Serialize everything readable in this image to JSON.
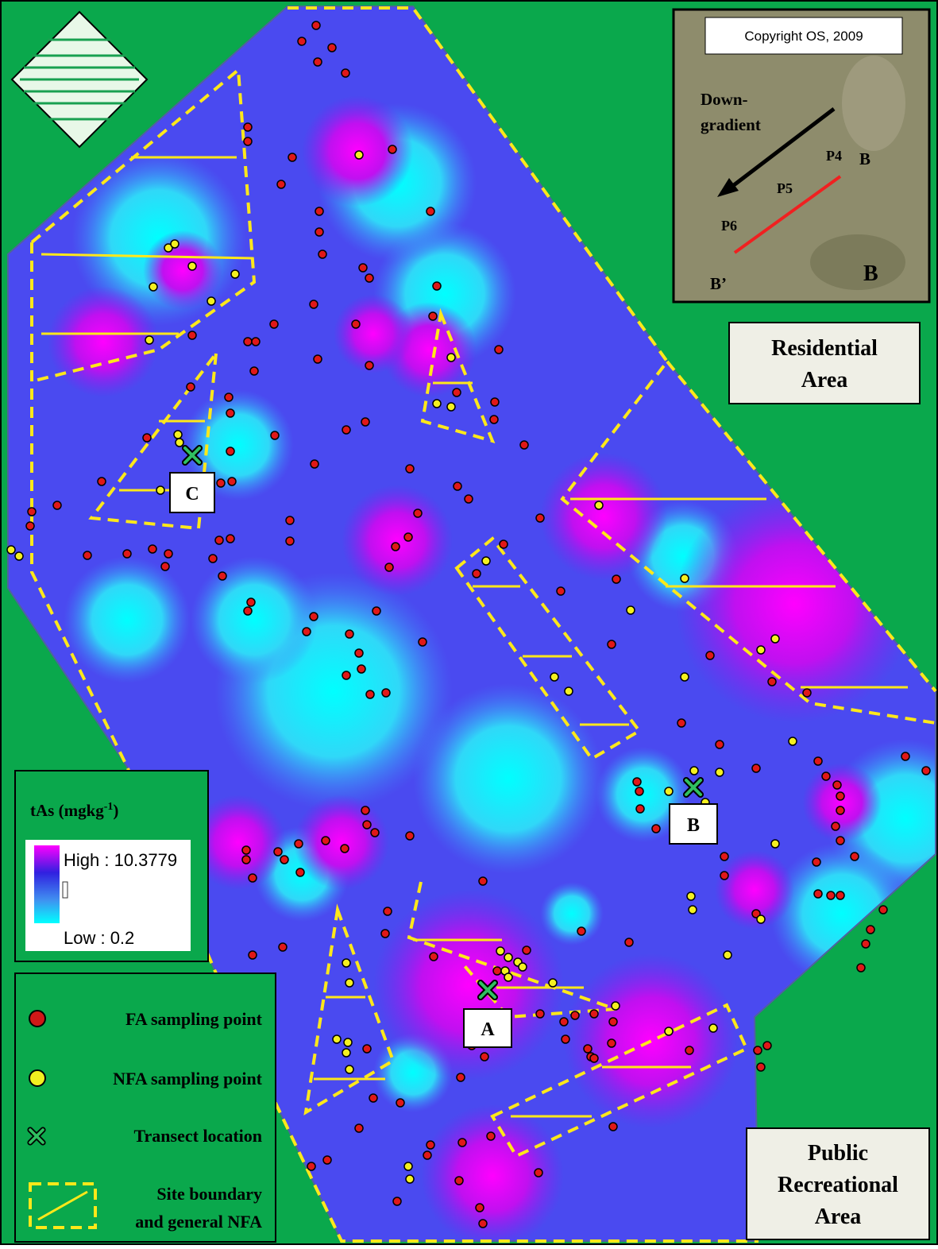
{
  "inset": {
    "copyright": "Copyright OS, 2009",
    "arrow_label": [
      "Down-",
      "gradient"
    ],
    "points": [
      "P4",
      "P5",
      "P6"
    ],
    "end_labels": [
      "B",
      "B’"
    ],
    "transect_label": "B"
  },
  "area_labels": {
    "residential": [
      "Residential",
      "Area"
    ],
    "recreational": [
      "Public",
      "Recreational",
      "Area"
    ]
  },
  "transects": [
    "C",
    "B",
    "A"
  ],
  "scale_legend": {
    "title": "tAs (mgkg",
    "title_sup": "-1",
    "title_close": ")",
    "high": "High : 10.3779",
    "low": "Low : 0.2"
  },
  "legend": {
    "fa": "FA sampling point",
    "nfa": "NFA sampling point",
    "transect": "Transect location",
    "boundary": [
      "Site boundary",
      "and general NFA"
    ]
  }
}
